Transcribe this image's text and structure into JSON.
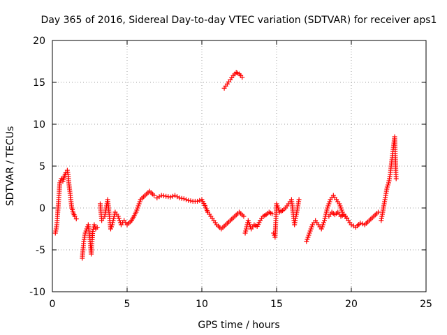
{
  "chart_data": {
    "type": "scatter",
    "title": "Day 365 of 2016, Sidereal Day-to-day VTEC variation (SDTVAR) for receiver aps1",
    "xlabel": "GPS time / hours",
    "ylabel": "SDTVAR / TECUs",
    "xlim": [
      0,
      25
    ],
    "ylim": [
      -10,
      20
    ],
    "xticks": [
      0,
      5,
      10,
      15,
      20,
      25
    ],
    "yticks": [
      -10,
      -5,
      0,
      5,
      10,
      15,
      20
    ],
    "grid": true,
    "marker": "plus",
    "color": "#ff0000",
    "series": [
      {
        "name": "SDTVAR",
        "x": [
          0.2,
          0.3,
          0.5,
          0.6,
          0.7,
          0.8,
          0.9,
          1.0,
          1.05,
          1.1,
          1.2,
          1.3,
          1.4,
          1.5,
          1.6
        ],
        "y": [
          -3.0,
          -2.0,
          3.0,
          3.5,
          3.2,
          3.8,
          4.2,
          4.5,
          4.0,
          3.0,
          1.5,
          0.0,
          -0.6,
          -1.0,
          -1.3
        ]
      },
      {
        "name": "SDTVAR",
        "x": [
          2.0,
          2.1,
          2.2,
          2.3,
          2.4,
          2.5,
          2.6,
          2.7,
          2.8,
          2.9,
          3.0
        ],
        "y": [
          -6.0,
          -4.0,
          -3.0,
          -2.5,
          -2.0,
          -3.5,
          -5.5,
          -2.8,
          -2.0,
          -2.5,
          -2.3
        ]
      },
      {
        "name": "SDTVAR",
        "x": [
          3.2,
          3.3,
          3.5,
          3.7,
          3.9,
          4.0,
          4.2,
          4.4,
          4.5,
          4.6,
          4.8,
          5.0,
          5.3,
          5.6,
          5.9,
          6.2,
          6.5,
          6.8
        ],
        "y": [
          0.5,
          -1.5,
          -1.0,
          1.0,
          -2.5,
          -2.0,
          -0.5,
          -1.0,
          -1.5,
          -2.0,
          -1.5,
          -2.0,
          -1.5,
          -0.5,
          1.0,
          1.5,
          2.0,
          1.5
        ]
      },
      {
        "name": "SDTVAR",
        "x": [
          7.0,
          7.3,
          7.6,
          7.9,
          8.2,
          8.5,
          8.8,
          9.1,
          9.4,
          9.7,
          10.0,
          10.2,
          10.4,
          10.6,
          10.8,
          11.0,
          11.3,
          11.6,
          11.9,
          12.2,
          12.5,
          12.8
        ],
        "y": [
          1.2,
          1.5,
          1.4,
          1.3,
          1.5,
          1.2,
          1.1,
          0.9,
          0.8,
          0.8,
          1.0,
          0.3,
          -0.5,
          -1.0,
          -1.5,
          -2.0,
          -2.5,
          -2.0,
          -1.5,
          -1.0,
          -0.5,
          -1.0
        ]
      },
      {
        "name": "SDTVAR",
        "x": [
          11.5,
          11.7,
          11.9,
          12.1,
          12.3,
          12.5,
          12.7
        ],
        "y": [
          14.3,
          14.8,
          15.3,
          15.8,
          16.2,
          16.0,
          15.6
        ]
      },
      {
        "name": "SDTVAR",
        "x": [
          12.9,
          13.1,
          13.3,
          13.5,
          13.7,
          13.9,
          14.1,
          14.3,
          14.5,
          14.7
        ],
        "y": [
          -3.0,
          -1.5,
          -2.5,
          -2.0,
          -2.2,
          -1.5,
          -1.0,
          -0.8,
          -0.5,
          -0.7
        ]
      },
      {
        "name": "SDTVAR",
        "x": [
          14.8,
          14.9,
          15.0,
          15.2,
          15.4,
          15.6,
          15.8,
          16.0,
          16.2,
          16.5
        ],
        "y": [
          -3.0,
          -3.5,
          0.5,
          -0.5,
          -0.3,
          0.0,
          0.5,
          1.0,
          -2.0,
          1.0
        ]
      },
      {
        "name": "SDTVAR",
        "x": [
          17.0,
          17.2,
          17.4,
          17.6,
          17.8,
          18.0,
          18.2,
          18.4,
          18.6,
          18.8,
          19.0,
          19.2,
          19.4,
          19.6,
          19.8,
          20.0,
          20.3,
          20.6,
          20.9,
          21.2,
          21.5,
          21.8
        ],
        "y": [
          -4.0,
          -3.0,
          -2.0,
          -1.5,
          -2.0,
          -2.5,
          -1.5,
          0.0,
          1.0,
          1.5,
          1.0,
          0.5,
          -0.5,
          -1.0,
          -1.5,
          -2.0,
          -2.3,
          -1.8,
          -2.0,
          -1.5,
          -1.0,
          -0.5
        ]
      },
      {
        "name": "SDTVAR",
        "x": [
          18.5,
          18.7,
          18.9,
          19.1,
          19.3,
          19.5,
          19.7
        ],
        "y": [
          -1.0,
          -0.5,
          -0.8,
          -0.5,
          -1.0,
          -0.8,
          -1.2
        ]
      },
      {
        "name": "SDTVAR",
        "x": [
          22.0,
          22.1,
          22.2,
          22.3,
          22.4,
          22.5,
          22.6,
          22.7,
          22.8,
          22.9,
          23.0
        ],
        "y": [
          -1.5,
          -0.5,
          0.5,
          1.5,
          2.5,
          3.0,
          4.0,
          5.5,
          7.0,
          8.5,
          3.5
        ]
      }
    ]
  }
}
